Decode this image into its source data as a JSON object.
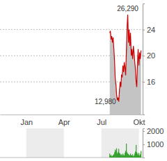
{
  "chart_data": [
    {
      "type": "area",
      "color": "#cc0000",
      "grid": true,
      "x": [
        6.67,
        6.72,
        6.78,
        6.83,
        6.89,
        6.94,
        7.0,
        7.06,
        7.11,
        7.17,
        7.22,
        7.28,
        7.33,
        7.39,
        7.44,
        7.5,
        7.56,
        7.61,
        7.67,
        7.72,
        7.78,
        7.83,
        7.89,
        7.94,
        8.0,
        8.06,
        8.11,
        8.17,
        8.22,
        8.28,
        8.33,
        8.39,
        8.44,
        8.5,
        8.56,
        8.61,
        8.67,
        8.72,
        8.78,
        8.83,
        8.89,
        8.94,
        9.0,
        9.06,
        9.11,
        9.17
      ],
      "values": [
        23.5,
        23.8,
        22.5,
        23.0,
        22.0,
        22.8,
        21.0,
        19.0,
        16.5,
        15.5,
        14.0,
        13.2,
        13.6,
        12.98,
        14.5,
        16.0,
        15.2,
        17.0,
        16.8,
        18.5,
        17.5,
        19.0,
        18.2,
        17.0,
        20.5,
        24.5,
        26.29,
        22.0,
        24.0,
        21.5,
        23.5,
        20.0,
        21.0,
        19.5,
        21.5,
        20.5,
        19.0,
        18.0,
        16.0,
        15.2,
        19.0,
        21.0,
        18.5,
        20.5,
        19.5,
        20.8
      ],
      "xlim": [
        -2.1,
        9.3
      ],
      "xticks": [
        {
          "value": 0,
          "label": "Jan"
        },
        {
          "value": 3,
          "label": "Apr"
        },
        {
          "value": 6,
          "label": "Jul"
        },
        {
          "value": 9,
          "label": "Okt"
        }
      ],
      "ylim": [
        11,
        28
      ],
      "yticks": [
        16,
        20,
        24
      ],
      "annotations": [
        {
          "text": "26,290",
          "x": 8.11,
          "y": 26.29
        },
        {
          "text": "12,980",
          "x": 7.39,
          "y": 12.98
        }
      ]
    },
    {
      "type": "bar",
      "color": "#33a02c",
      "tick_labels": "y",
      "x": [
        6.67,
        6.72,
        6.78,
        6.83,
        6.89,
        6.94,
        7.0,
        7.06,
        7.11,
        7.17,
        7.22,
        7.28,
        7.33,
        7.39,
        7.44,
        7.5,
        7.56,
        7.61,
        7.67,
        7.72,
        7.78,
        7.83,
        7.89,
        7.94,
        8.0,
        8.06,
        8.11,
        8.17,
        8.22,
        8.28,
        8.33,
        8.39,
        8.44,
        8.5,
        8.56,
        8.61,
        8.67,
        8.72,
        8.78,
        8.83,
        8.89,
        8.94,
        9.0,
        9.06,
        9.11,
        9.17
      ],
      "values": [
        300,
        150,
        200,
        100,
        120,
        180,
        250,
        400,
        600,
        500,
        700,
        300,
        400,
        650,
        350,
        300,
        200,
        250,
        150,
        300,
        200,
        150,
        350,
        500,
        1050,
        400,
        300,
        250,
        200,
        150,
        300,
        200,
        150,
        250,
        100,
        150,
        300,
        450,
        950,
        400,
        300,
        200,
        350,
        150,
        250,
        500
      ],
      "xlim": [
        -2.1,
        9.3
      ],
      "ylim": [
        0,
        2200
      ],
      "yticks": [
        1000,
        2000
      ]
    }
  ]
}
